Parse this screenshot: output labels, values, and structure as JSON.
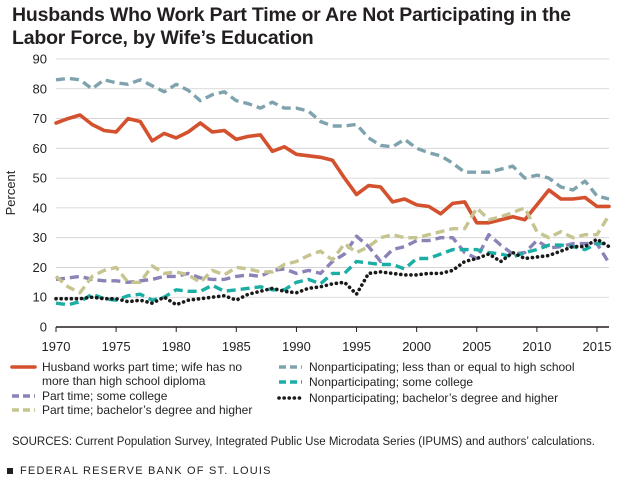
{
  "chart_data": {
    "type": "line",
    "title": "Husbands Who Work Part Time or Are Not Participating in the Labor Force, by Wife’s Education",
    "xlabel": "",
    "ylabel": "Percent",
    "xlim": [
      1970,
      2016
    ],
    "ylim": [
      0,
      90
    ],
    "x_ticks": [
      "1970",
      "1975",
      "1980",
      "1985",
      "1990",
      "1995",
      "2000",
      "2005",
      "2010",
      "2015"
    ],
    "y_ticks": [
      "0",
      "10",
      "20",
      "30",
      "40",
      "50",
      "60",
      "70",
      "80",
      "90"
    ],
    "grid": "horizontal",
    "legend_position": "bottom",
    "x": [
      1970,
      1971,
      1972,
      1973,
      1974,
      1975,
      1976,
      1977,
      1978,
      1979,
      1980,
      1981,
      1982,
      1983,
      1984,
      1985,
      1986,
      1987,
      1988,
      1989,
      1990,
      1991,
      1992,
      1993,
      1994,
      1995,
      1996,
      1997,
      1998,
      1999,
      2000,
      2001,
      2002,
      2003,
      2004,
      2005,
      2006,
      2007,
      2008,
      2009,
      2010,
      2011,
      2012,
      2013,
      2014,
      2015,
      2016
    ],
    "series": [
      {
        "name": "Husband works part time; wife has no more than high school diploma",
        "color": "#d4512e",
        "style": "solid",
        "values": [
          68.5,
          70,
          71.2,
          68,
          66,
          65.5,
          70,
          69,
          62.5,
          65,
          63.5,
          65.5,
          68.5,
          65.5,
          66,
          63,
          64,
          64.5,
          59,
          60.5,
          58,
          57.5,
          57,
          56,
          50,
          44.5,
          47.5,
          47,
          42,
          43,
          41,
          40.5,
          38,
          41.5,
          42,
          35,
          35,
          36,
          37,
          36,
          41,
          46,
          43,
          43,
          43.5,
          40.5,
          40.5
        ]
      },
      {
        "name": "Nonparticipating; less than or equal to high school",
        "color": "#7fa3ae",
        "style": "dash",
        "values": [
          83,
          83.5,
          83,
          80,
          83,
          82,
          81.5,
          83,
          81,
          79,
          81.5,
          79.5,
          76,
          78,
          79,
          76,
          75,
          73.5,
          75.5,
          73.5,
          73.5,
          72.5,
          69,
          67.5,
          67.5,
          68,
          63.5,
          61,
          60.5,
          63,
          60,
          58.5,
          57.5,
          55,
          52,
          52,
          52,
          53,
          54,
          50,
          51,
          50,
          47,
          46,
          49,
          44,
          43
        ]
      },
      {
        "name": "Part time; some college",
        "color": "#8b83b8",
        "style": "dash",
        "values": [
          16,
          16.5,
          17,
          16,
          15.5,
          15.5,
          15,
          15.5,
          16,
          17,
          17,
          18,
          16.5,
          16,
          16,
          17,
          17.5,
          17,
          19,
          19.5,
          18,
          19,
          18,
          22,
          24.5,
          30.5,
          27,
          22,
          26,
          27,
          29,
          29,
          30,
          30,
          25,
          23,
          31,
          27.5,
          24.5,
          25,
          29,
          26.5,
          27,
          28,
          28,
          28,
          21.5
        ]
      },
      {
        "name": "Nonparticipating; some college",
        "color": "#1aaea4",
        "style": "dash",
        "values": [
          8,
          7.5,
          8.5,
          11,
          9.5,
          9,
          10.5,
          11,
          9,
          10,
          12.5,
          12,
          12,
          14,
          12,
          12.5,
          13,
          13.5,
          12.5,
          12.5,
          15,
          16,
          14.5,
          18,
          18,
          22,
          21.5,
          21,
          21,
          19.5,
          23,
          23,
          24.5,
          26,
          26,
          26,
          25,
          24.5,
          23.5,
          25,
          26,
          27.5,
          27.5,
          27,
          26,
          28,
          28
        ]
      },
      {
        "name": "Part time; bachelor’s degree and higher",
        "color": "#c6c48f",
        "style": "dash",
        "values": [
          17,
          13.5,
          11.5,
          17,
          19,
          20,
          15,
          15,
          20.5,
          18,
          18.5,
          17.5,
          15,
          19,
          17.5,
          20,
          19.5,
          18.5,
          18.5,
          21,
          22,
          24,
          25.5,
          22.5,
          28,
          25,
          27,
          30,
          31,
          30,
          30,
          31,
          32,
          33,
          33,
          40,
          36,
          37,
          38.5,
          40,
          32,
          30,
          32,
          30,
          31,
          31,
          37.5
        ]
      },
      {
        "name": "Nonparticipating; bachelor’s degree and higher",
        "color": "#1a1a1a",
        "style": "dot",
        "values": [
          9.5,
          9.5,
          9.5,
          10,
          9.5,
          9.5,
          8.5,
          9,
          8,
          10,
          7.5,
          9,
          9.5,
          10,
          10.5,
          9,
          11,
          12,
          13,
          12,
          11.5,
          13,
          13.5,
          14.5,
          15,
          11,
          18,
          18.5,
          18,
          17.5,
          17.5,
          18,
          18,
          19,
          22,
          23,
          24.5,
          22,
          25,
          23,
          23.5,
          24,
          25.5,
          27,
          27,
          29.5,
          27
        ]
      }
    ]
  },
  "source_note": "SOURCES: Current Population Survey, Integrated Public Use Microdata Series (IPUMS) and authors’ calculations.",
  "footer": "FEDERAL RESERVE BANK OF ST. LOUIS"
}
